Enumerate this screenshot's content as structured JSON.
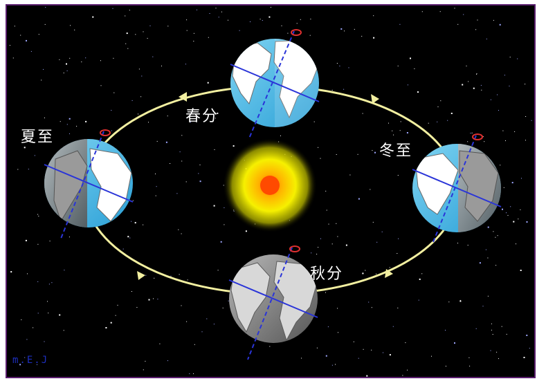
{
  "labels": {
    "spring_equinox": "春分",
    "summer_solstice": "夏至",
    "autumn_equinox": "秋分",
    "winter_solstice": "冬至"
  },
  "credit": "m.E.J",
  "colors": {
    "space": "#000000",
    "frame": "#5a1e6e",
    "orbit": "#f2efa0",
    "sun_core": "#ff6a00",
    "sun_glow": "#f6f000",
    "axis": "#2a34d8",
    "equator": "#2a34d8",
    "ocean": "#41b8e8",
    "land": "#ffffff",
    "night": "#8a8a8a",
    "rotation": "#e03030",
    "label": "#ffffff"
  },
  "icons": [
    "sun-icon",
    "earth-icon",
    "rotation-arrow-icon",
    "orbit-direction-arrow-icon"
  ]
}
